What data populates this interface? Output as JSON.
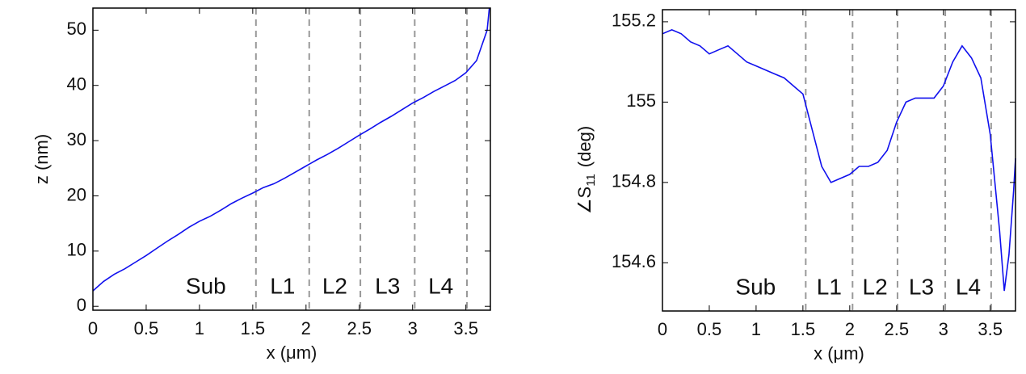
{
  "chart_data": [
    {
      "type": "line",
      "xlabel": "x (μm)",
      "ylabel": "z (nm)",
      "x": [
        0,
        0.1,
        0.2,
        0.3,
        0.4,
        0.5,
        0.6,
        0.7,
        0.8,
        0.9,
        1.0,
        1.1,
        1.2,
        1.3,
        1.4,
        1.5,
        1.6,
        1.7,
        1.8,
        1.9,
        2.0,
        2.1,
        2.2,
        2.3,
        2.4,
        2.5,
        2.6,
        2.7,
        2.8,
        2.9,
        3.0,
        3.1,
        3.2,
        3.3,
        3.4,
        3.5,
        3.6,
        3.7,
        3.72
      ],
      "values": [
        2.8,
        4.5,
        5.8,
        6.8,
        8.0,
        9.2,
        10.5,
        11.8,
        13.0,
        14.3,
        15.4,
        16.3,
        17.4,
        18.6,
        19.6,
        20.5,
        21.5,
        22.2,
        23.2,
        24.3,
        25.4,
        26.5,
        27.5,
        28.6,
        29.8,
        31.0,
        32.1,
        33.3,
        34.4,
        35.6,
        36.8,
        37.8,
        38.9,
        39.9,
        40.9,
        42.3,
        44.5,
        50,
        54
      ],
      "color": "#1010ee",
      "xlim": [
        0,
        3.73
      ],
      "ylim": [
        -0.7,
        54
      ],
      "xticks": [
        0,
        0.5,
        1,
        1.5,
        2,
        2.5,
        3,
        3.5
      ],
      "yticks": [
        0,
        10,
        20,
        30,
        40,
        50
      ],
      "boundaries": [
        1.53,
        2.03,
        2.51,
        3.02,
        3.51
      ],
      "regions": [
        "Sub",
        "L1",
        "L2",
        "L3",
        "L4"
      ]
    },
    {
      "type": "line",
      "xlabel": "x (μm)",
      "ylabel": [
        "∠S",
        "11",
        "(deg)"
      ],
      "x": [
        0,
        0.1,
        0.2,
        0.3,
        0.4,
        0.5,
        0.6,
        0.7,
        0.8,
        0.9,
        1.0,
        1.1,
        1.2,
        1.3,
        1.4,
        1.5,
        1.6,
        1.7,
        1.8,
        1.9,
        2.0,
        2.1,
        2.2,
        2.3,
        2.4,
        2.5,
        2.6,
        2.7,
        2.8,
        2.9,
        3.0,
        3.1,
        3.2,
        3.3,
        3.4,
        3.5,
        3.6,
        3.65,
        3.7,
        3.75,
        3.77
      ],
      "values": [
        155.17,
        155.18,
        155.17,
        155.15,
        155.14,
        155.12,
        155.13,
        155.14,
        155.12,
        155.1,
        155.09,
        155.08,
        155.07,
        155.06,
        155.04,
        155.02,
        154.93,
        154.84,
        154.8,
        154.81,
        154.82,
        154.84,
        154.84,
        154.85,
        154.88,
        154.95,
        155.0,
        155.01,
        155.01,
        155.01,
        155.04,
        155.1,
        155.14,
        155.11,
        155.06,
        154.92,
        154.68,
        154.53,
        154.62,
        154.78,
        154.86
      ],
      "color": "#1010ee",
      "xlim": [
        0,
        3.77
      ],
      "ylim": [
        154.48,
        155.23
      ],
      "xticks": [
        0,
        0.5,
        1,
        1.5,
        2,
        2.5,
        3,
        3.5
      ],
      "yticks": [
        154.6,
        154.8,
        155,
        155.2
      ],
      "boundaries": [
        1.53,
        2.03,
        2.51,
        3.02,
        3.51
      ],
      "regions": [
        "Sub",
        "L1",
        "L2",
        "L3",
        "L4"
      ]
    }
  ]
}
